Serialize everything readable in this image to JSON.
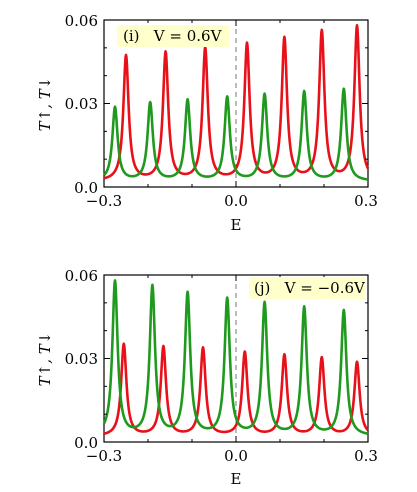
{
  "chart_data": [
    {
      "type": "line",
      "annotation": "(i)   V = 0.6V",
      "xlabel": "E",
      "ylabel": "T↑, T↓",
      "xlim": [
        -0.3,
        0.3
      ],
      "ylim": [
        0.0,
        0.06
      ],
      "xticks": [
        "−0.3",
        "0.0",
        "0.3"
      ],
      "yticks": [
        "0.0",
        "0.03",
        "0.06"
      ],
      "dashed_vline_at": 0.0,
      "series": [
        {
          "color": "#e8111a",
          "peaks_x": [
            -0.25,
            -0.16,
            -0.07,
            0.025,
            0.11,
            0.195,
            0.275
          ],
          "peaks_y": [
            0.047,
            0.048,
            0.0495,
            0.051,
            0.053,
            0.0555,
            0.0575
          ],
          "baseline": 0.002
        },
        {
          "color": "#1f9a1f",
          "peaks_x": [
            -0.275,
            -0.195,
            -0.11,
            -0.02,
            0.065,
            0.155,
            0.245
          ],
          "peaks_y": [
            0.0285,
            0.03,
            0.031,
            0.032,
            0.033,
            0.034,
            0.035
          ],
          "baseline": 0.002
        }
      ]
    },
    {
      "type": "line",
      "annotation": "(j)   V = −0.6V",
      "xlabel": "E",
      "ylabel": "T↑, T↓",
      "xlim": [
        -0.3,
        0.3
      ],
      "ylim": [
        0.0,
        0.06
      ],
      "xticks": [
        "−0.3",
        "0.0",
        "0.3"
      ],
      "yticks": [
        "0.0",
        "0.03",
        "0.06"
      ],
      "dashed_vline_at": 0.0,
      "series": [
        {
          "color": "#e8111a",
          "peaks_x": [
            -0.255,
            -0.165,
            -0.075,
            0.02,
            0.11,
            0.195,
            0.275
          ],
          "peaks_y": [
            0.035,
            0.034,
            0.0335,
            0.032,
            0.031,
            0.03,
            0.0285
          ],
          "baseline": 0.002
        },
        {
          "color": "#1f9a1f",
          "peaks_x": [
            -0.275,
            -0.19,
            -0.11,
            -0.02,
            0.065,
            0.155,
            0.245
          ],
          "peaks_y": [
            0.0575,
            0.0555,
            0.053,
            0.051,
            0.0495,
            0.048,
            0.047
          ],
          "baseline": 0.002
        }
      ]
    }
  ]
}
